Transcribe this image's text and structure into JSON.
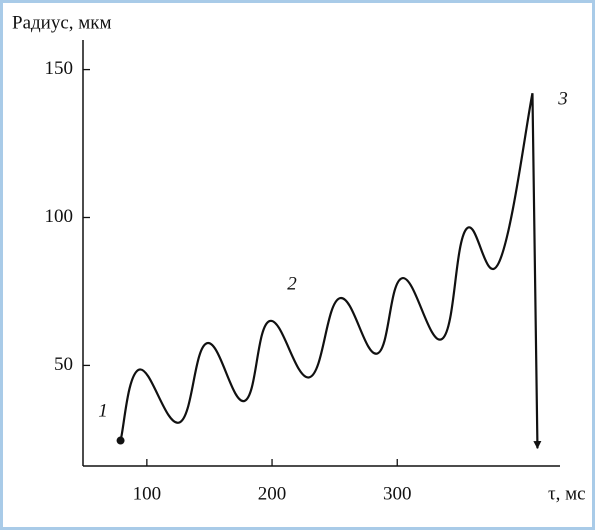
{
  "chart_data": {
    "type": "line",
    "y_label": "Радиус, мкм",
    "x_label": "τ, мс",
    "x": [
      79,
      94,
      126,
      148,
      178,
      198,
      230,
      254,
      284,
      304,
      336,
      355,
      381,
      408,
      412
    ],
    "values": [
      24.6,
      48.6,
      30.7,
      57.5,
      38,
      65,
      46,
      72.7,
      54,
      79.5,
      59,
      96,
      84.6,
      142,
      22
    ],
    "color": "#111111",
    "xlim": [
      49,
      430
    ],
    "ylim": [
      16,
      160
    ],
    "xticks": [
      100,
      200,
      300
    ],
    "yticks": [
      50,
      100,
      150
    ],
    "annotations": [
      "1",
      "2",
      "3"
    ]
  }
}
